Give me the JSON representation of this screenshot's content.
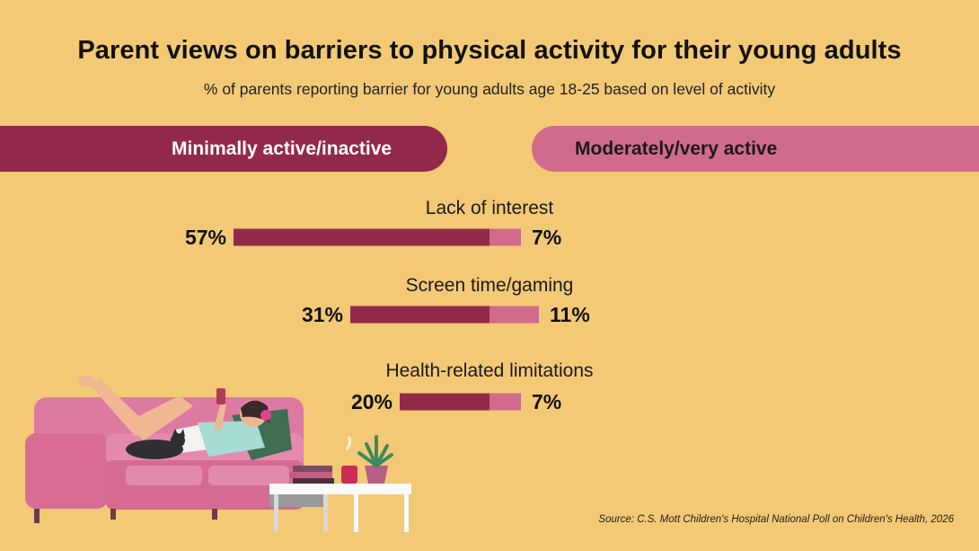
{
  "title": "Parent views on barriers to physical activity for their young adults",
  "subtitle": "% of parents reporting barrier for young adults age 18-25 based on level of activity",
  "legend": {
    "left_label": "Minimally active/inactive",
    "right_label": "Moderately/very active"
  },
  "colors": {
    "background": "#f3c976",
    "inactive": "#93294a",
    "active": "#d06b8b"
  },
  "chart_data": {
    "type": "bar",
    "categories": [
      "Lack of interest",
      "Screen time/gaming",
      "Health-related limitations"
    ],
    "series": [
      {
        "name": "Minimally active/inactive",
        "values": [
          57,
          31,
          20
        ]
      },
      {
        "name": "Moderately/very active",
        "values": [
          7,
          11,
          7
        ]
      }
    ],
    "value_labels": {
      "inactive": [
        "57%",
        "31%",
        "20%"
      ],
      "active": [
        "7%",
        "11%",
        "7%"
      ]
    },
    "unit": "%",
    "title": "Parent views on barriers to physical activity for their young adults",
    "xlabel": "",
    "ylabel": "",
    "grid": false,
    "legend_position": "top"
  },
  "source": "Source: C.S. Mott Children's Hospital National Poll on Children's Health, 2026",
  "illustration": {
    "icon": "person-on-sofa-with-phone-and-cat-icon"
  }
}
